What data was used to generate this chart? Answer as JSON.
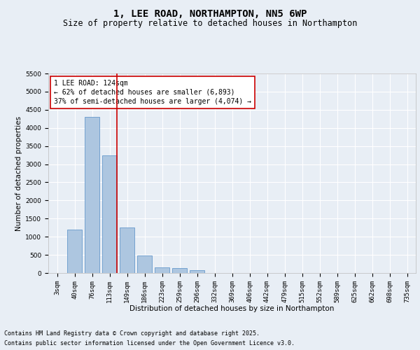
{
  "title": "1, LEE ROAD, NORTHAMPTON, NN5 6WP",
  "subtitle": "Size of property relative to detached houses in Northampton",
  "xlabel": "Distribution of detached houses by size in Northampton",
  "ylabel": "Number of detached properties",
  "categories": [
    "3sqm",
    "40sqm",
    "76sqm",
    "113sqm",
    "149sqm",
    "186sqm",
    "223sqm",
    "259sqm",
    "296sqm",
    "332sqm",
    "369sqm",
    "406sqm",
    "442sqm",
    "479sqm",
    "515sqm",
    "552sqm",
    "589sqm",
    "625sqm",
    "662sqm",
    "698sqm",
    "735sqm"
  ],
  "values": [
    0,
    1200,
    4300,
    3250,
    1250,
    480,
    150,
    130,
    80,
    0,
    0,
    0,
    0,
    0,
    0,
    0,
    0,
    0,
    0,
    0,
    0
  ],
  "bar_color": "#adc6e0",
  "bar_edge_color": "#6699cc",
  "ylim": [
    0,
    5500
  ],
  "yticks": [
    0,
    500,
    1000,
    1500,
    2000,
    2500,
    3000,
    3500,
    4000,
    4500,
    5000,
    5500
  ],
  "red_line_index": 3,
  "annotation_title": "1 LEE ROAD: 124sqm",
  "annotation_line1": "← 62% of detached houses are smaller (6,893)",
  "annotation_line2": "37% of semi-detached houses are larger (4,074) →",
  "annotation_box_color": "#ffffff",
  "annotation_box_edge": "#cc0000",
  "red_line_color": "#cc0000",
  "footnote1": "Contains HM Land Registry data © Crown copyright and database right 2025.",
  "footnote2": "Contains public sector information licensed under the Open Government Licence v3.0.",
  "bg_color": "#e8eef5",
  "plot_bg_color": "#e8eef5",
  "grid_color": "#ffffff",
  "title_fontsize": 10,
  "subtitle_fontsize": 8.5,
  "axis_label_fontsize": 7.5,
  "tick_fontsize": 6.5,
  "annotation_fontsize": 7,
  "footnote_fontsize": 6
}
